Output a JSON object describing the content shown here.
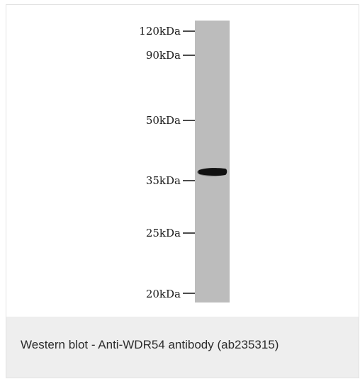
{
  "figure": {
    "markers": [
      {
        "label": "120kDa"
      },
      {
        "label": "90kDa"
      },
      {
        "label": "50kDa"
      },
      {
        "label": "35kDa"
      },
      {
        "label": "25kDa"
      },
      {
        "label": "20kDa"
      }
    ],
    "lane_color": "#bcbcbc",
    "band_color": "#111111"
  },
  "caption": {
    "text": "Western blot - Anti-WDR54 antibody (ab235315)"
  }
}
